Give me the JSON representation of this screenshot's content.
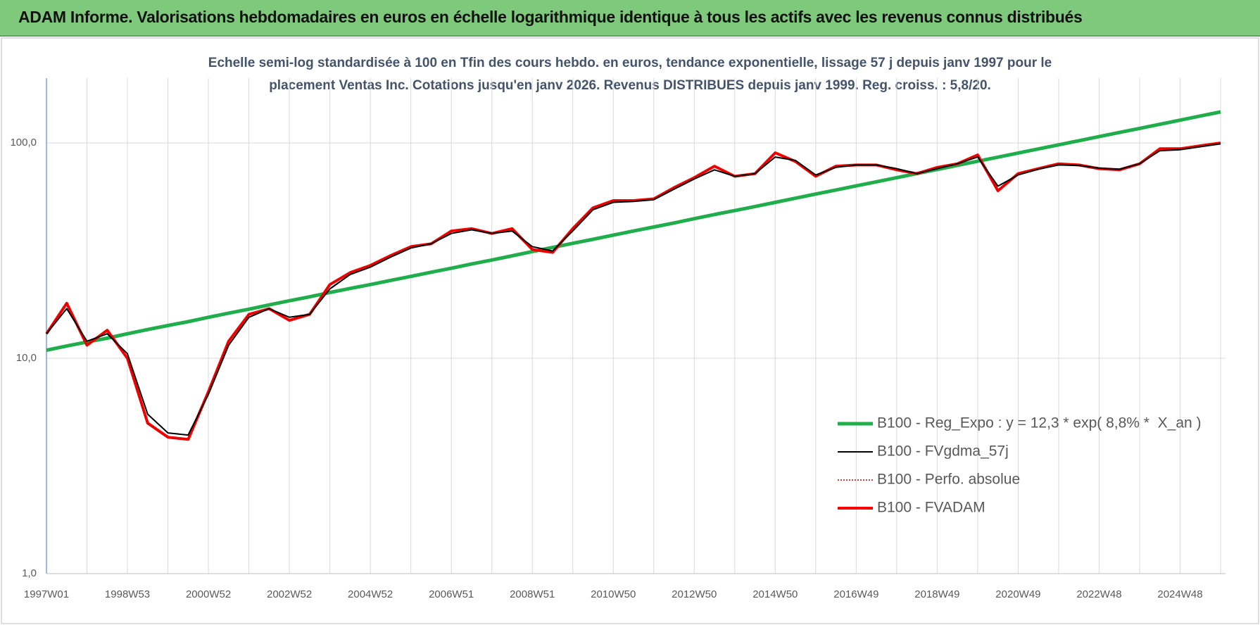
{
  "chart_data": {
    "type": "line",
    "title": "ADAM Informe. Valorisations hebdomadaires en euros en échelle logarithmique identique à tous les actifs avec les revenus connus distribués",
    "subtitle": [
      "Echelle semi-log standardisée à 100 en Tfin des cours hebdo. en euros, tendance exponentielle, lissage 57 j depuis janv 1997 pour le",
      "placement Ventas Inc. Cotations jusqu'en janv 2026. Revenus DISTRIBUES depuis janv 1999. Reg. croiss. : 5,8/20."
    ],
    "categories": [
      "1997W01",
      null,
      null,
      null,
      "1998W53",
      null,
      null,
      null,
      "2000W52",
      null,
      null,
      null,
      "2002W52",
      null,
      null,
      null,
      "2004W52",
      null,
      null,
      null,
      "2006W51",
      null,
      null,
      null,
      "2008W51",
      null,
      null,
      null,
      "2010W50",
      null,
      null,
      null,
      "2012W50",
      null,
      null,
      null,
      "2014W50",
      null,
      null,
      null,
      "2016W49",
      null,
      null,
      null,
      "2018W49",
      null,
      null,
      null,
      "2020W49",
      null,
      null,
      null,
      "2022W48",
      null,
      null,
      null,
      "2024W48",
      null,
      null
    ],
    "log_scale": true,
    "ylim": [
      1,
      200
    ],
    "yticks": [
      {
        "value": 1,
        "label": "1,0"
      },
      {
        "value": 10,
        "label": "10,0"
      },
      {
        "value": 100,
        "label": "100,0"
      }
    ],
    "grid": true,
    "legend": "right",
    "series": [
      {
        "name": "B100 - Reg_Expo : y = 12,3 * exp( 8,8% *  X_an )",
        "color": "#1fae4b",
        "style": "solid",
        "width": 5,
        "values": [
          10.9,
          11.4,
          11.9,
          12.4,
          13.0,
          13.6,
          14.2,
          14.8,
          15.5,
          16.2,
          16.9,
          17.7,
          18.5,
          19.3,
          20.2,
          21.1,
          22.0,
          23.0,
          24.0,
          25.1,
          26.2,
          27.4,
          28.6,
          29.9,
          31.3,
          32.7,
          34.2,
          35.7,
          37.3,
          39.0,
          40.7,
          42.5,
          44.5,
          46.5,
          48.5,
          50.7,
          53.0,
          55.4,
          57.9,
          60.5,
          63.2,
          66.0,
          69.0,
          72.1,
          75.3,
          78.7,
          82.2,
          85.9,
          89.8,
          93.8,
          98.0,
          102.4,
          107.0,
          111.9,
          116.9,
          122.1,
          127.6,
          133.4,
          139.4
        ]
      },
      {
        "name": "B100 - FVgdma_57j",
        "color": "#000000",
        "style": "solid",
        "width": 2,
        "values": [
          13,
          17,
          12,
          13,
          10.5,
          5.5,
          4.5,
          4.4,
          6.8,
          11.5,
          15.5,
          17,
          15.5,
          16,
          21,
          24.5,
          26.5,
          29.5,
          32.5,
          34,
          38,
          39.5,
          38,
          39,
          33,
          31.5,
          39,
          49,
          53,
          53.5,
          54.5,
          61,
          68,
          75,
          70,
          72,
          86,
          83,
          71,
          77,
          79,
          79,
          76,
          72,
          76,
          80,
          86,
          63,
          71,
          75.5,
          79,
          78.5,
          76.5,
          75.5,
          80,
          92,
          93,
          96,
          99
        ]
      },
      {
        "name": "B100 - Perfo. absolue",
        "color": "#c00000",
        "style": "dotted",
        "width": 1.5,
        "values": [
          13,
          18,
          11.5,
          13.5,
          10,
          5,
          4.3,
          4.2,
          7,
          12,
          16,
          17,
          15,
          16,
          22,
          25,
          27,
          30,
          33,
          34,
          39,
          40,
          38,
          40,
          32,
          31,
          40,
          50,
          54,
          54,
          55,
          62,
          69,
          78,
          70,
          72,
          90,
          82,
          70,
          78,
          79,
          79,
          75,
          72,
          77,
          80,
          88,
          60,
          72,
          76,
          80,
          79,
          76,
          75,
          80,
          94,
          94,
          97,
          100
        ]
      },
      {
        "name": "B100 - FVADAM",
        "color": "#ff0000",
        "style": "solid",
        "width": 4,
        "values": [
          13,
          18,
          11.5,
          13.5,
          10,
          5,
          4.3,
          4.2,
          7,
          12,
          16,
          17,
          15,
          16,
          22,
          25,
          27,
          30,
          33,
          34,
          39,
          40,
          38,
          40,
          32,
          31,
          40,
          50,
          54,
          54,
          55,
          62,
          69,
          78,
          70,
          72,
          90,
          82,
          70,
          78,
          79,
          79,
          75,
          72,
          77,
          80,
          88,
          60,
          72,
          76,
          80,
          79,
          76,
          75,
          80,
          94,
          94,
          97,
          100
        ]
      }
    ]
  }
}
